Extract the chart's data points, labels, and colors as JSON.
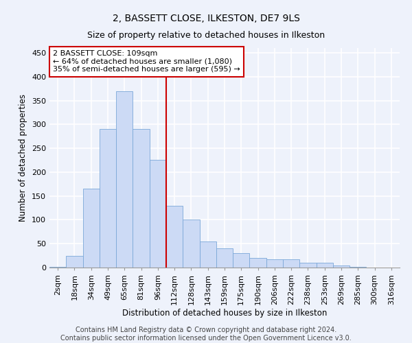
{
  "title": "2, BASSETT CLOSE, ILKESTON, DE7 9LS",
  "subtitle": "Size of property relative to detached houses in Ilkeston",
  "xlabel": "Distribution of detached houses by size in Ilkeston",
  "ylabel": "Number of detached properties",
  "categories": [
    "2sqm",
    "18sqm",
    "34sqm",
    "49sqm",
    "65sqm",
    "81sqm",
    "96sqm",
    "112sqm",
    "128sqm",
    "143sqm",
    "159sqm",
    "175sqm",
    "190sqm",
    "206sqm",
    "222sqm",
    "238sqm",
    "253sqm",
    "269sqm",
    "285sqm",
    "300sqm",
    "316sqm"
  ],
  "values": [
    2,
    25,
    165,
    290,
    370,
    290,
    225,
    130,
    100,
    55,
    40,
    30,
    20,
    17,
    17,
    10,
    10,
    5,
    2,
    0,
    0
  ],
  "bar_color": "#ccdaf5",
  "bar_edge_color": "#7aa8d8",
  "vline_color": "#cc0000",
  "annotation_text": "2 BASSETT CLOSE: 109sqm\n← 64% of detached houses are smaller (1,080)\n35% of semi-detached houses are larger (595) →",
  "annotation_box_color": "white",
  "annotation_box_edge_color": "#cc0000",
  "ylim": [
    0,
    460
  ],
  "yticks": [
    0,
    50,
    100,
    150,
    200,
    250,
    300,
    350,
    400,
    450
  ],
  "footer": "Contains HM Land Registry data © Crown copyright and database right 2024.\nContains public sector information licensed under the Open Government Licence v3.0.",
  "bg_color": "#eef2fb",
  "grid_color": "#ffffff",
  "title_fontsize": 10,
  "subtitle_fontsize": 9,
  "xlabel_fontsize": 8.5,
  "ylabel_fontsize": 8.5,
  "footer_fontsize": 7,
  "tick_fontsize": 8,
  "annot_fontsize": 8
}
